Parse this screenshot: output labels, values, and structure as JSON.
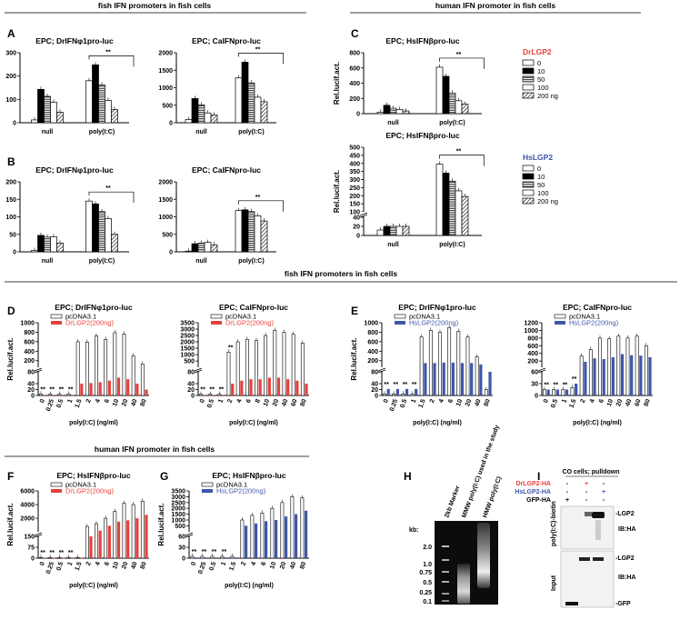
{
  "sections": {
    "top_left": "fish IFN promoters  in fish cells",
    "top_right": "human IFN promoter  in fish cells",
    "middle": "fish IFN promoters  in fish cells",
    "bottom": "human IFN promoter  in fish cells"
  },
  "panel_letters": [
    "A",
    "B",
    "C",
    "D",
    "E",
    "F",
    "G",
    "H",
    "I"
  ],
  "colors": {
    "dr": "#e8403a",
    "hs": "#3f56a8",
    "white": "#ffffff",
    "black": "#000000"
  },
  "significance": "**",
  "chart_data": [
    {
      "id": "A1",
      "type": "bar",
      "title": "EPC; DrIFNφ1pro-luc",
      "ylabel": "Rel.lucif.act.",
      "groups": [
        "null",
        "poly(I:C)"
      ],
      "yticks": [
        0,
        100,
        200,
        300
      ],
      "ylim": [
        0,
        300
      ],
      "legend_title": "DrLGP2",
      "series": [
        {
          "name": "0",
          "values": [
            12,
            180
          ]
        },
        {
          "name": "10",
          "values": [
            143,
            248
          ]
        },
        {
          "name": "50",
          "values": [
            113,
            162
          ]
        },
        {
          "name": "100",
          "values": [
            88,
            95
          ]
        },
        {
          "name": "200 ng",
          "values": [
            45,
            57
          ]
        }
      ]
    },
    {
      "id": "A2",
      "type": "bar",
      "title": "EPC; CaIFNpro-luc",
      "ylabel": "",
      "groups": [
        "null",
        "poly(I:C)"
      ],
      "yticks": [
        0,
        500,
        1000,
        1500,
        2000
      ],
      "ylim": [
        0,
        2000
      ],
      "series": [
        {
          "name": "0",
          "values": [
            90,
            1280
          ]
        },
        {
          "name": "10",
          "values": [
            690,
            1730
          ]
        },
        {
          "name": "50",
          "values": [
            510,
            1140
          ]
        },
        {
          "name": "100",
          "values": [
            280,
            730
          ]
        },
        {
          "name": "200 ng",
          "values": [
            220,
            600
          ]
        }
      ]
    },
    {
      "id": "B1",
      "type": "bar",
      "title": "EPC; DrIFNφ1pro-luc",
      "ylabel": "Rel.lucif.act.",
      "groups": [
        "null",
        "poly(I:C)"
      ],
      "yticks": [
        0,
        50,
        100,
        150,
        200
      ],
      "ylim": [
        0,
        200
      ],
      "legend_title": "HsLGP2",
      "series": [
        {
          "name": "0",
          "values": [
            4,
            145
          ]
        },
        {
          "name": "10",
          "values": [
            47,
            137
          ]
        },
        {
          "name": "50",
          "values": [
            42,
            115
          ]
        },
        {
          "name": "100",
          "values": [
            43,
            95
          ]
        },
        {
          "name": "200 ng",
          "values": [
            25,
            50
          ]
        }
      ]
    },
    {
      "id": "B2",
      "type": "bar",
      "title": "EPC; CaIFNpro-luc",
      "ylabel": "",
      "groups": [
        "null",
        "poly(I:C)"
      ],
      "yticks": [
        0,
        500,
        1000,
        1500,
        2000
      ],
      "ylim": [
        0,
        2000
      ],
      "series": [
        {
          "name": "0",
          "values": [
            20,
            1180
          ]
        },
        {
          "name": "10",
          "values": [
            230,
            1200
          ]
        },
        {
          "name": "50",
          "values": [
            250,
            1150
          ]
        },
        {
          "name": "100",
          "values": [
            270,
            1030
          ]
        },
        {
          "name": "200 ng",
          "values": [
            200,
            880
          ]
        }
      ]
    },
    {
      "id": "C1",
      "type": "bar",
      "title": "EPC; HsIFNβpro-luc",
      "ylabel": "Rel.lucif.act.",
      "groups": [
        "null",
        "poly(I:C)"
      ],
      "yticks": [
        0,
        200,
        400,
        600,
        800
      ],
      "ylim": [
        0,
        800
      ],
      "legend_title": "DrLGP2",
      "series": [
        {
          "name": "0",
          "values": [
            20,
            610
          ]
        },
        {
          "name": "10",
          "values": [
            110,
            490
          ]
        },
        {
          "name": "50",
          "values": [
            70,
            270
          ]
        },
        {
          "name": "100",
          "values": [
            55,
            170
          ]
        },
        {
          "name": "200 ng",
          "values": [
            35,
            125
          ]
        }
      ]
    },
    {
      "id": "C2",
      "type": "bar",
      "title": "EPC; HsIFNβpro-luc",
      "ylabel": "Rel.lucif.act.",
      "groups": [
        "null",
        "poly(I:C)"
      ],
      "yticks": [
        0,
        20,
        40,
        100,
        150,
        200,
        250,
        300,
        350,
        400,
        450,
        500
      ],
      "ylim": [
        0,
        500
      ],
      "legend_title": "HsLGP2",
      "series": [
        {
          "name": "0",
          "values": [
            12,
            395
          ]
        },
        {
          "name": "10",
          "values": [
            20,
            340
          ]
        },
        {
          "name": "50",
          "values": [
            20,
            290
          ]
        },
        {
          "name": "100",
          "values": [
            20,
            230
          ]
        },
        {
          "name": "200 ng",
          "values": [
            20,
            195
          ]
        }
      ]
    },
    {
      "id": "D1",
      "type": "bar",
      "title": "EPC; DrIFNφ1pro-luc",
      "ylabel": "Rel.lucif.act.",
      "xlabel": "poly(I:C) (ng/ml)",
      "categories": [
        "0",
        "0.25",
        "0.5",
        "1",
        "1.5",
        "2",
        "4",
        "6",
        "10",
        "20",
        "40",
        "80"
      ],
      "yticks": [
        0,
        20,
        40,
        80,
        200,
        400,
        600,
        800,
        1000
      ],
      "ylim": [
        0,
        1000
      ],
      "series": [
        {
          "name": "pcDNA3.1",
          "values": [
            5,
            4,
            4,
            5,
            600,
            590,
            720,
            650,
            790,
            760,
            300,
            130
          ]
        },
        {
          "name": "DrLGP2(200ng)",
          "values": [
            2,
            2,
            2,
            2,
            40,
            42,
            45,
            50,
            60,
            55,
            40,
            20
          ]
        }
      ]
    },
    {
      "id": "D2",
      "type": "bar",
      "title": "EPC; CaIFNpro-luc",
      "ylabel": "",
      "xlabel": "poly(I:C) (ng/ml)",
      "categories": [
        "0",
        "0.5",
        "1",
        "2",
        "4",
        "6",
        "8",
        "10",
        "20",
        "40",
        "60",
        "80"
      ],
      "yticks": [
        0,
        20,
        40,
        80,
        500,
        1000,
        1500,
        2000,
        2500,
        3000,
        3500
      ],
      "ylim": [
        0,
        3500
      ],
      "series": [
        {
          "name": "pcDNA3.1",
          "values": [
            4,
            4,
            4,
            1200,
            2000,
            2200,
            2100,
            2500,
            2900,
            2750,
            2600,
            1900
          ]
        },
        {
          "name": "DrLGP2(200ng)",
          "values": [
            2,
            2,
            2,
            40,
            50,
            55,
            55,
            60,
            60,
            55,
            50,
            40
          ]
        }
      ]
    },
    {
      "id": "E1",
      "type": "bar",
      "title": "EPC; DrIFNφ1pro-luc",
      "ylabel": "Rel.lucif.act.",
      "xlabel": "poly(I:C) (ng/ml)",
      "categories": [
        "0",
        "0.25",
        "0.5",
        "1",
        "1.5",
        "2",
        "4",
        "6",
        "10",
        "20",
        "40",
        "80"
      ],
      "yticks": [
        0,
        20,
        40,
        80,
        200,
        400,
        600,
        800,
        1000
      ],
      "ylim": [
        0,
        1000
      ],
      "series": [
        {
          "name": "pcDNA3.1",
          "values": [
            5,
            5,
            5,
            5,
            700,
            840,
            800,
            900,
            820,
            700,
            280,
            20
          ]
        },
        {
          "name": "HsLGP2(200ng)",
          "values": [
            22,
            22,
            22,
            22,
            150,
            150,
            160,
            160,
            150,
            150,
            120,
            80
          ]
        }
      ]
    },
    {
      "id": "E2",
      "type": "bar",
      "title": "EPC; CaIFNpro-luc",
      "ylabel": "",
      "xlabel": "poly(I:C) (ng/ml)",
      "categories": [
        "0",
        "0.5",
        "1",
        "1.5",
        "2",
        "4",
        "6",
        "10",
        "20",
        "40",
        "60",
        "80"
      ],
      "yticks": [
        0,
        30,
        60,
        200,
        400,
        600,
        800,
        1000,
        1200
      ],
      "ylim": [
        0,
        1200
      ],
      "series": [
        {
          "name": "pcDNA3.1",
          "values": [
            15,
            15,
            15,
            20,
            330,
            500,
            800,
            780,
            850,
            800,
            850,
            600
          ]
        },
        {
          "name": "HsLGP2(200ng)",
          "values": [
            15,
            15,
            15,
            30,
            180,
            270,
            250,
            300,
            380,
            350,
            340,
            300
          ]
        }
      ]
    },
    {
      "id": "F1",
      "type": "bar",
      "title": "EPC; HsIFNβpro-luc",
      "ylabel": "Rel.lucif.act.",
      "xlabel": "poly(I:C) (ng/ml)",
      "categories": [
        "0",
        "0.25",
        "0.5",
        "1",
        "1.5",
        "2",
        "4",
        "6",
        "10",
        "20",
        "40",
        "80"
      ],
      "yticks": [
        0,
        75,
        150,
        2000,
        4000,
        6000
      ],
      "ylim": [
        0,
        6000
      ],
      "series": [
        {
          "name": "pcDNA3.1",
          "values": [
            5,
            5,
            5,
            5,
            5,
            800,
            1200,
            2000,
            3000,
            4200,
            4000,
            4500
          ]
        },
        {
          "name": "DrLGP2(200ng)",
          "values": [
            2,
            2,
            2,
            2,
            2,
            150,
            200,
            900,
            1500,
            1700,
            2000,
            2500
          ]
        }
      ]
    },
    {
      "id": "G1",
      "type": "bar",
      "title": "EPC; HsIFNβpro-luc",
      "ylabel": "Rel.lucif.act.",
      "xlabel": "poly(I:C) (ng/ml)",
      "categories": [
        "0",
        "0.25",
        "0.5",
        "1",
        "1.5",
        "2",
        "4",
        "6",
        "10",
        "20",
        "40",
        "80"
      ],
      "yticks": [
        0,
        30,
        60,
        500,
        1000,
        1500,
        2000,
        2500,
        3000,
        3500
      ],
      "ylim": [
        0,
        3500
      ],
      "series": [
        {
          "name": "pcDNA3.1",
          "values": [
            5,
            5,
            5,
            5,
            5,
            1000,
            1400,
            1600,
            2000,
            2500,
            3000,
            2900
          ]
        },
        {
          "name": "HsLGP2(200ng)",
          "values": [
            2,
            2,
            2,
            2,
            2,
            500,
            700,
            900,
            1000,
            1300,
            1500,
            1800
          ]
        }
      ]
    }
  ],
  "gel": {
    "ylabel": "kb:",
    "lanes": [
      "2kb Marker",
      "MMW poly(I:C) used in the study",
      "HMW poly(I:C)"
    ],
    "marker_sizes": [
      "2.0",
      "1.0",
      "0.75",
      "0.5",
      "0.25",
      "0.1"
    ]
  },
  "blot": {
    "title": "CO cells; pulldown",
    "rows": [
      {
        "label": "DrLGP2-HA",
        "signs": [
          "-",
          "+",
          "-"
        ]
      },
      {
        "label": "HsLGP2-HA",
        "signs": [
          "-",
          "-",
          "+"
        ]
      },
      {
        "label": "GFP-HA",
        "signs": [
          "+",
          "-",
          "-"
        ]
      }
    ],
    "upper_side": "poly(I:C)-biotin",
    "lower_side": "Input",
    "upper_bands": [
      "-LGP2",
      "IB:HA"
    ],
    "lower_bands": [
      "-LGP2",
      "IB:HA",
      "-GFP"
    ]
  }
}
